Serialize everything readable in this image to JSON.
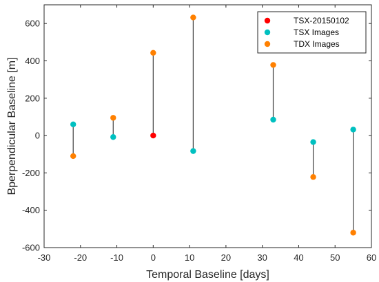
{
  "chart_data": {
    "type": "scatter",
    "xlabel": "Temporal Baseline [days]",
    "ylabel": "Bperpendicular Baseline [m]",
    "xlim": [
      -30,
      60
    ],
    "ylim": [
      -600,
      700
    ],
    "x_ticks": [
      -30,
      -20,
      -10,
      0,
      10,
      20,
      30,
      40,
      50,
      60
    ],
    "y_ticks": [
      -600,
      -400,
      -200,
      0,
      200,
      400,
      600
    ],
    "grid": false,
    "legend_position": "top-right",
    "series": [
      {
        "name": "TSX-20150102",
        "color": "#ff0000",
        "points": [
          {
            "x": 0,
            "y": 0
          }
        ]
      },
      {
        "name": "TSX Images",
        "color": "#00c0c0",
        "points": [
          {
            "x": -22,
            "y": 60
          },
          {
            "x": -11,
            "y": -8
          },
          {
            "x": 11,
            "y": -83
          },
          {
            "x": 33,
            "y": 85
          },
          {
            "x": 44,
            "y": -35
          },
          {
            "x": 55,
            "y": 32
          }
        ]
      },
      {
        "name": "TDX Images",
        "color": "#ff8000",
        "points": [
          {
            "x": -22,
            "y": -110
          },
          {
            "x": -11,
            "y": 95
          },
          {
            "x": 0,
            "y": 443
          },
          {
            "x": 11,
            "y": 632
          },
          {
            "x": 33,
            "y": 378
          },
          {
            "x": 44,
            "y": -222
          },
          {
            "x": 55,
            "y": -520
          }
        ]
      }
    ],
    "connectors": [
      {
        "x": -22,
        "y1": 60,
        "y2": -110
      },
      {
        "x": -11,
        "y1": -8,
        "y2": 95
      },
      {
        "x": 0,
        "y1": 0,
        "y2": 443
      },
      {
        "x": 11,
        "y1": -83,
        "y2": 632
      },
      {
        "x": 33,
        "y1": 85,
        "y2": 378
      },
      {
        "x": 44,
        "y1": -35,
        "y2": -222
      },
      {
        "x": 55,
        "y1": 32,
        "y2": -520
      }
    ],
    "connector_color": "#404040"
  }
}
